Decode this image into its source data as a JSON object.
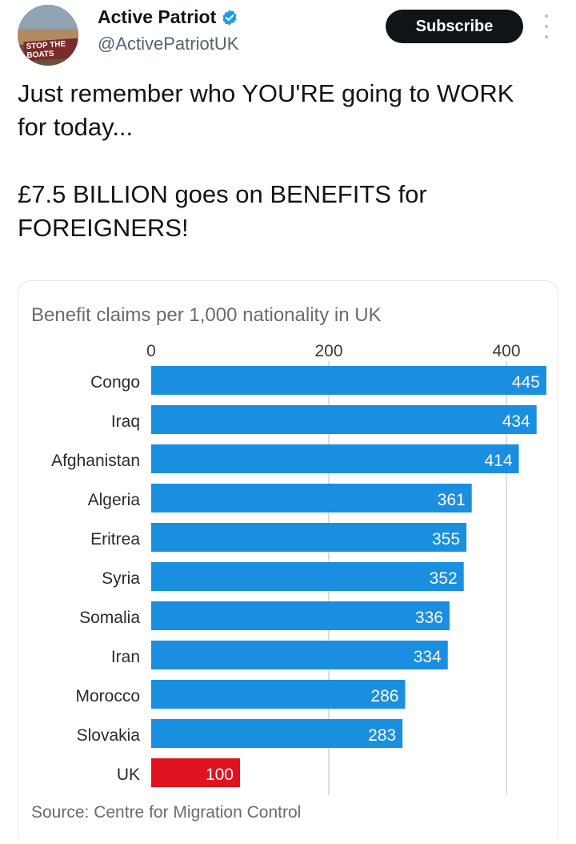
{
  "account": {
    "name": "Active Patriot",
    "handle": "@ActivePatriotUK",
    "avatar_text": "STOP THE BOATS",
    "verified_icon": "verified-badge-icon",
    "accent": "#1d9bf0"
  },
  "actions": {
    "subscribe_label": "Subscribe",
    "more_icon": "more-vertical-icon"
  },
  "tweet": {
    "line1": "Just remember who YOU'RE going to WORK for today...",
    "line2": "£7.5 BILLION goes on BENEFITS for FOREIGNERS!"
  },
  "chart_data": {
    "type": "bar",
    "orientation": "horizontal",
    "title": "Benefit claims per 1,000 nationality in UK",
    "source": "Source: Centre for Migration Control",
    "categories": [
      "Congo",
      "Iraq",
      "Afghanistan",
      "Algeria",
      "Eritrea",
      "Syria",
      "Somalia",
      "Iran",
      "Morocco",
      "Slovakia",
      "UK"
    ],
    "values": [
      445,
      434,
      414,
      361,
      355,
      352,
      336,
      334,
      286,
      283,
      100
    ],
    "xticks": [
      0,
      200,
      400
    ],
    "xlim": [
      0,
      450
    ],
    "grid": true,
    "colors": {
      "default": "#1a8fe0",
      "highlight": "#e0121f"
    },
    "highlight_category": "UK"
  }
}
